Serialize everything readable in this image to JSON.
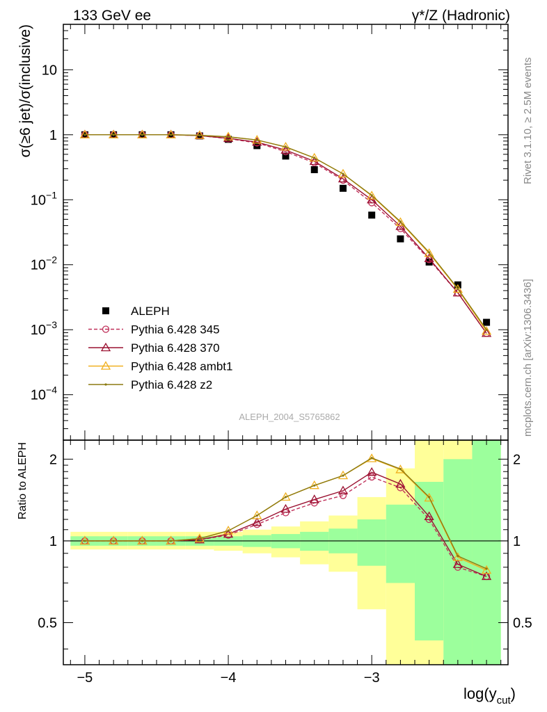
{
  "header": {
    "left_label": "133 GeV ee",
    "right_label": "γ*/Z (Hadronic)"
  },
  "side_labels": {
    "rivet": "Rivet 3.1.10, ≥ 2.5M events",
    "mcplots": "mcplots.cern.ch [arXiv:1306.3436]"
  },
  "analysis_label": "ALEPH_2004_S5765862",
  "colors": {
    "data": "#000000",
    "p345": "#c0305a",
    "p370": "#9a1030",
    "ambt1": "#f0b020",
    "z2": "#8c7a10",
    "band_inner": "#9cff9c",
    "band_outer": "#ffff99"
  },
  "chart_data": [
    {
      "type": "line",
      "panel": "main",
      "ylabel": "σ(≥6 jet)/σ(inclusive)",
      "xlim": [
        -5.15,
        -2.05
      ],
      "ylim": [
        2e-05,
        50
      ],
      "yscale": "log",
      "yticks": [
        {
          "v": 0.0001,
          "base": "10",
          "exp": "−4"
        },
        {
          "v": 0.001,
          "base": "10",
          "exp": "−3"
        },
        {
          "v": 0.01,
          "base": "10",
          "exp": "−2"
        },
        {
          "v": 0.1,
          "base": "10",
          "exp": "−1"
        },
        {
          "v": 1,
          "base": "1",
          "exp": ""
        },
        {
          "v": 10,
          "base": "10",
          "exp": ""
        }
      ],
      "legend_position": "lower-left",
      "x": [
        -5.0,
        -4.8,
        -4.6,
        -4.4,
        -4.2,
        -4.0,
        -3.8,
        -3.6,
        -3.4,
        -3.2,
        -3.0,
        -2.8,
        -2.6,
        -2.4,
        -2.2
      ],
      "series": [
        {
          "name": "ALEPH",
          "marker": "square",
          "color_key": "data",
          "values": [
            1.0,
            1.0,
            1.0,
            1.0,
            0.96,
            0.85,
            0.68,
            0.47,
            0.29,
            0.15,
            0.058,
            0.025,
            0.011,
            0.0049,
            0.0013
          ]
        },
        {
          "name": "Pythia 6.428 345",
          "marker": "circle",
          "dash": true,
          "color_key": "p345",
          "values": [
            1.0,
            1.0,
            1.0,
            1.0,
            0.97,
            0.87,
            0.75,
            0.55,
            0.37,
            0.2,
            0.09,
            0.036,
            0.012,
            0.0037,
            0.00088
          ]
        },
        {
          "name": "Pythia 6.428 370",
          "marker": "triangle",
          "color_key": "p370",
          "values": [
            1.0,
            1.0,
            1.0,
            1.0,
            0.97,
            0.88,
            0.77,
            0.58,
            0.39,
            0.21,
            0.1,
            0.039,
            0.0125,
            0.0037,
            0.00088
          ]
        },
        {
          "name": "Pythia 6.428 ambt1",
          "marker": "triangle",
          "color_key": "ambt1",
          "values": [
            1.0,
            1.0,
            1.0,
            1.0,
            0.98,
            0.93,
            0.83,
            0.65,
            0.44,
            0.25,
            0.115,
            0.045,
            0.015,
            0.0042,
            0.00095
          ]
        },
        {
          "name": "Pythia 6.428 z2",
          "marker": "dot",
          "color_key": "z2",
          "values": [
            1.0,
            1.0,
            1.0,
            1.0,
            0.98,
            0.93,
            0.83,
            0.65,
            0.44,
            0.25,
            0.117,
            0.046,
            0.0155,
            0.0043,
            0.001
          ]
        }
      ]
    },
    {
      "type": "line",
      "panel": "ratio",
      "ylabel": "Ratio to ALEPH",
      "xlabel": "log(y",
      "xlabel_sub": "cut",
      "xlabel_close": ")",
      "xlim": [
        -5.15,
        -2.05
      ],
      "ylim": [
        0.35,
        2.35
      ],
      "yscale": "log",
      "yticks": [
        {
          "v": 0.5,
          "label": "0.5"
        },
        {
          "v": 1,
          "label": "1"
        },
        {
          "v": 2,
          "label": "2"
        }
      ],
      "xticks": [
        {
          "v": -5,
          "label": "−5"
        },
        {
          "v": -4,
          "label": "−4"
        },
        {
          "v": -3,
          "label": "−3"
        }
      ],
      "bins": [
        {
          "lo": -5.1,
          "hi": -4.9,
          "inner": [
            0.96,
            1.04
          ],
          "outer": [
            0.93,
            1.08
          ]
        },
        {
          "lo": -4.9,
          "hi": -4.7,
          "inner": [
            0.96,
            1.04
          ],
          "outer": [
            0.93,
            1.08
          ]
        },
        {
          "lo": -4.7,
          "hi": -4.5,
          "inner": [
            0.96,
            1.04
          ],
          "outer": [
            0.93,
            1.08
          ]
        },
        {
          "lo": -4.5,
          "hi": -4.3,
          "inner": [
            0.96,
            1.04
          ],
          "outer": [
            0.93,
            1.08
          ]
        },
        {
          "lo": -4.3,
          "hi": -4.1,
          "inner": [
            0.96,
            1.04
          ],
          "outer": [
            0.93,
            1.08
          ]
        },
        {
          "lo": -4.1,
          "hi": -3.9,
          "inner": [
            0.96,
            1.04
          ],
          "outer": [
            0.92,
            1.08
          ]
        },
        {
          "lo": -3.9,
          "hi": -3.7,
          "inner": [
            0.95,
            1.05
          ],
          "outer": [
            0.9,
            1.1
          ]
        },
        {
          "lo": -3.7,
          "hi": -3.5,
          "inner": [
            0.94,
            1.06
          ],
          "outer": [
            0.87,
            1.13
          ]
        },
        {
          "lo": -3.5,
          "hi": -3.3,
          "inner": [
            0.92,
            1.08
          ],
          "outer": [
            0.82,
            1.18
          ]
        },
        {
          "lo": -3.3,
          "hi": -3.1,
          "inner": [
            0.9,
            1.11
          ],
          "outer": [
            0.77,
            1.24
          ]
        },
        {
          "lo": -3.1,
          "hi": -2.9,
          "inner": [
            0.81,
            1.2
          ],
          "outer": [
            0.56,
            1.45
          ]
        },
        {
          "lo": -2.9,
          "hi": -2.7,
          "inner": [
            0.7,
            1.36
          ],
          "outer": [
            0.3,
            1.85
          ]
        },
        {
          "lo": -2.7,
          "hi": -2.5,
          "inner": [
            0.43,
            1.65
          ],
          "outer": [
            0.2,
            2.5
          ]
        },
        {
          "lo": -2.5,
          "hi": -2.3,
          "inner": [
            0.2,
            2.0
          ],
          "outer": [
            0.2,
            3.0
          ]
        },
        {
          "lo": -2.3,
          "hi": -2.1,
          "inner": [
            0.2,
            3.0
          ],
          "outer": [
            0.2,
            3.0
          ]
        }
      ],
      "x": [
        -5.0,
        -4.8,
        -4.6,
        -4.4,
        -4.2,
        -4.0,
        -3.8,
        -3.6,
        -3.4,
        -3.2,
        -3.0,
        -2.8,
        -2.6,
        -2.4,
        -2.2
      ],
      "series": [
        {
          "name": "Pythia 6.428 345",
          "marker": "circle",
          "dash": true,
          "color_key": "p345",
          "values": [
            1.0,
            1.0,
            1.0,
            1.0,
            1.01,
            1.05,
            1.15,
            1.27,
            1.38,
            1.47,
            1.72,
            1.57,
            1.2,
            0.8,
            0.74
          ]
        },
        {
          "name": "Pythia 6.428 370",
          "marker": "triangle",
          "color_key": "p370",
          "values": [
            1.0,
            1.0,
            1.0,
            1.0,
            1.01,
            1.06,
            1.17,
            1.31,
            1.42,
            1.53,
            1.79,
            1.62,
            1.23,
            0.82,
            0.74
          ]
        },
        {
          "name": "Pythia 6.428 ambt1",
          "marker": "triangle",
          "color_key": "ambt1",
          "values": [
            1.0,
            1.0,
            1.0,
            1.0,
            1.02,
            1.09,
            1.24,
            1.45,
            1.6,
            1.74,
            2.01,
            1.83,
            1.44,
            0.87,
            0.78
          ]
        },
        {
          "name": "Pythia 6.428 z2",
          "marker": "dot",
          "color_key": "z2",
          "values": [
            1.0,
            1.0,
            1.0,
            1.0,
            1.02,
            1.09,
            1.24,
            1.45,
            1.6,
            1.74,
            2.02,
            1.84,
            1.45,
            0.88,
            0.79
          ]
        }
      ]
    }
  ]
}
